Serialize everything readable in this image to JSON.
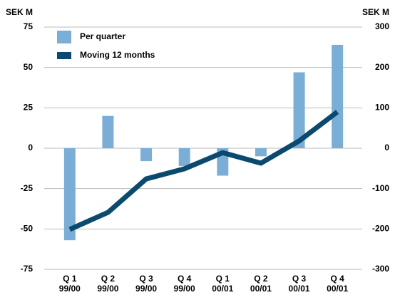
{
  "chart_data": {
    "type": "bar_line",
    "y_label": "SEK M",
    "y2_label": "SEK M",
    "categories": [
      [
        "Q 1",
        "99/00"
      ],
      [
        "Q 2",
        "99/00"
      ],
      [
        "Q 3",
        "99/00"
      ],
      [
        "Q 4",
        "99/00"
      ],
      [
        "Q 1",
        "00/01"
      ],
      [
        "Q 2",
        "00/01"
      ],
      [
        "Q 3",
        "00/01"
      ],
      [
        "Q 4",
        "00/01"
      ]
    ],
    "series": [
      {
        "name": "Per quarter",
        "type": "bar",
        "color": "#7aaed6",
        "values": [
          -57,
          20,
          -8,
          -11,
          -17,
          -5,
          47,
          64
        ]
      },
      {
        "name": "Moving 12 months",
        "type": "line",
        "axis": "y2",
        "color": "#0b4a6e",
        "values": [
          -201,
          -159,
          -76,
          -51,
          -11,
          -37,
          18,
          90
        ]
      }
    ],
    "ylim": [
      -75,
      75
    ],
    "yticks": [
      -75,
      -50,
      -25,
      0,
      25,
      50,
      75
    ],
    "y2lim": [
      -300,
      300
    ],
    "y2ticks": [
      -300,
      -200,
      -100,
      0,
      100,
      200,
      300
    ],
    "grid": true
  }
}
